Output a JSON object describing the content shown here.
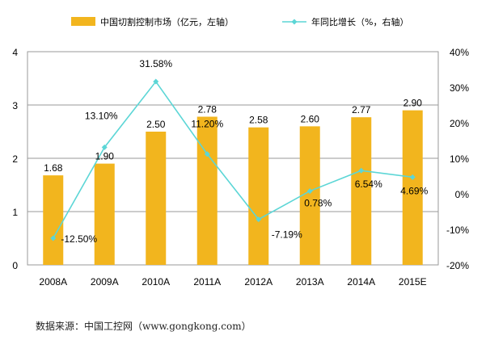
{
  "chart_data": {
    "type": "bar",
    "categories": [
      "2008A",
      "2009A",
      "2010A",
      "2011A",
      "2012A",
      "2013A",
      "2014A",
      "2015E"
    ],
    "series": [
      {
        "name": "中国切割控制市场（亿元，左轴）",
        "type": "bar",
        "axis": "left",
        "values": [
          1.68,
          1.9,
          2.5,
          2.78,
          2.58,
          2.6,
          2.77,
          2.9
        ],
        "labels": [
          "1.68",
          "1.90",
          "2.50",
          "2.78",
          "2.58",
          "2.60",
          "2.77",
          "2.90"
        ],
        "color": "#F2B51E"
      },
      {
        "name": "年同比增长（%，右轴）",
        "type": "line",
        "axis": "right",
        "values": [
          -12.5,
          13.1,
          31.58,
          11.2,
          -7.19,
          0.78,
          6.54,
          4.69
        ],
        "labels": [
          "-12.50%",
          "13.10%",
          "31.58%",
          "11.20%",
          "-7.19%",
          "0.78%",
          "6.54%",
          "4.69%"
        ],
        "color": "#5CD6D6"
      }
    ],
    "y_left": {
      "range": [
        0,
        4
      ],
      "ticks": [
        "0",
        "1",
        "2",
        "3",
        "4"
      ]
    },
    "y_right": {
      "range": [
        -20,
        40
      ],
      "ticks": [
        "-20%",
        "-10%",
        "0%",
        "10%",
        "20%",
        "30%",
        "40%"
      ]
    },
    "grid": true,
    "legend_position": "top"
  },
  "source_note": "数据来源：中国工控网（www.gongkong.com）"
}
